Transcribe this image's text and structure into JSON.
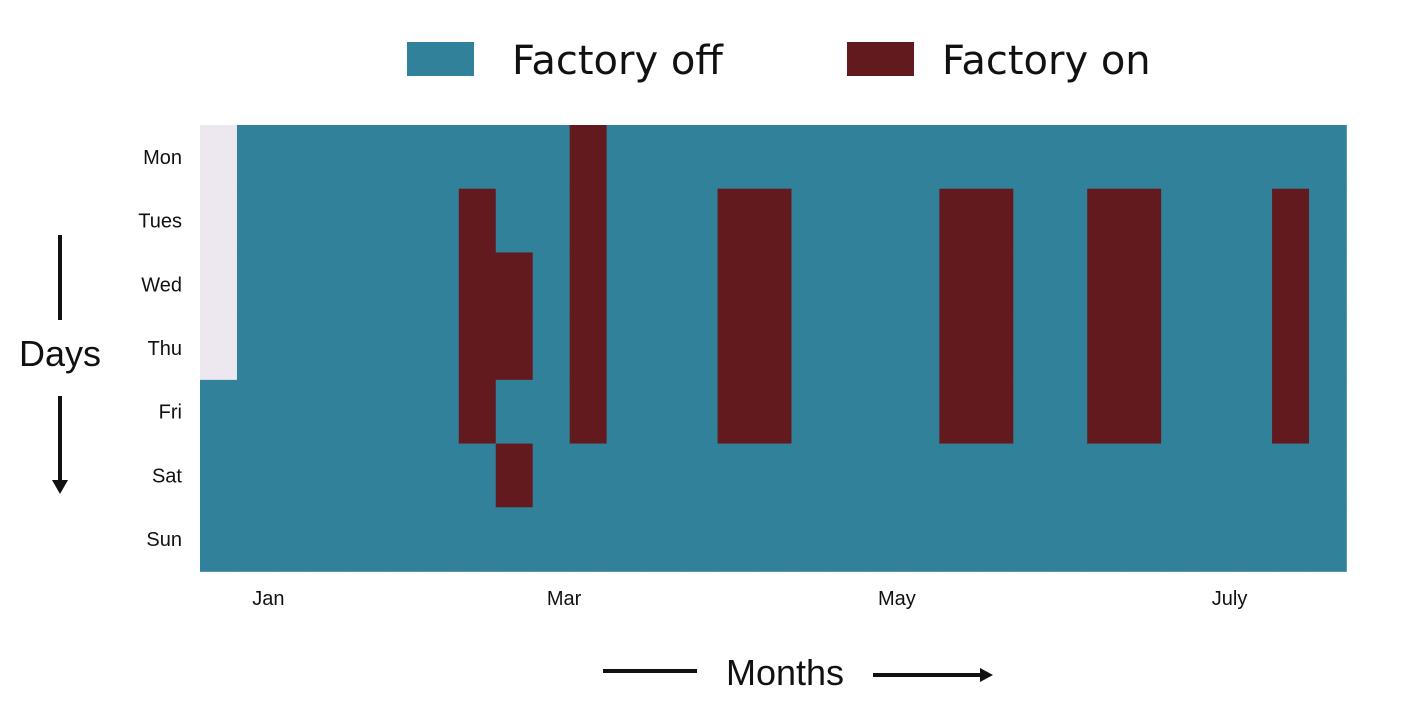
{
  "chart_data": {
    "type": "heatmap",
    "title": "",
    "xlabel": "Months",
    "ylabel": "Days",
    "legend": {
      "position": "top",
      "entries": [
        {
          "label": "Factory off",
          "value": 0,
          "color": "#32819A"
        },
        {
          "label": "Factory on",
          "value": 1,
          "color": "#621A1F"
        }
      ]
    },
    "missing_color": "#EDE8F0",
    "y_categories": [
      "Mon",
      "Tues",
      "Wed",
      "Thu",
      "Fri",
      "Sat",
      "Sun"
    ],
    "x_tick_labels": [
      {
        "label": "Jan",
        "week": 2
      },
      {
        "label": "Mar",
        "week": 10
      },
      {
        "label": "May",
        "week": 19
      },
      {
        "label": "July",
        "week": 28
      }
    ],
    "weeks": 31,
    "missing_cells": [
      {
        "week": 0,
        "days": [
          0,
          1,
          2,
          3
        ]
      }
    ],
    "on_cells": [
      {
        "week": 7,
        "days": [
          1,
          2,
          3,
          4
        ]
      },
      {
        "week": 8,
        "days": [
          2,
          3,
          5
        ]
      },
      {
        "week": 10,
        "days": [
          0,
          1,
          2,
          3,
          4
        ]
      },
      {
        "week": 14,
        "days": [
          1,
          2,
          3,
          4
        ]
      },
      {
        "week": 15,
        "days": [
          1,
          2,
          3,
          4
        ]
      },
      {
        "week": 20,
        "days": [
          1,
          2,
          3,
          4
        ]
      },
      {
        "week": 21,
        "days": [
          1,
          2,
          3,
          4
        ]
      },
      {
        "week": 24,
        "days": [
          1,
          2,
          3,
          4
        ]
      },
      {
        "week": 25,
        "days": [
          1,
          2,
          3,
          4
        ]
      },
      {
        "week": 29,
        "days": [
          1,
          2,
          3,
          4
        ]
      }
    ],
    "grid": false
  }
}
